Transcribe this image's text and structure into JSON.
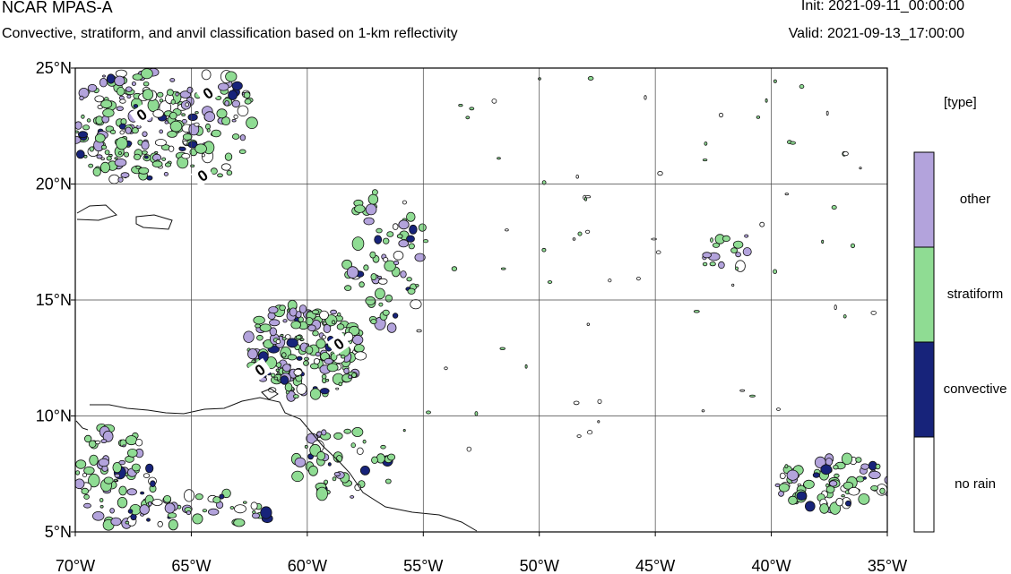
{
  "header": {
    "title": "NCAR MPAS-A",
    "subtitle": "Convective, stratiform, and anvil classification based on 1-km reflectivity",
    "init": "Init: 2021-09-11_00:00:00",
    "valid": "Valid: 2021-09-13_17:00:00"
  },
  "map": {
    "lon_range": [
      -70,
      -35
    ],
    "lat_range": [
      5,
      25
    ],
    "lat_ticks": [
      {
        "value": 25,
        "label": "25°N"
      },
      {
        "value": 20,
        "label": "20°N"
      },
      {
        "value": 15,
        "label": "15°N"
      },
      {
        "value": 10,
        "label": "10°N"
      },
      {
        "value": 5,
        "label": "5°N"
      }
    ],
    "lon_ticks": [
      {
        "value": -70,
        "label": "70°W"
      },
      {
        "value": -65,
        "label": "65°W"
      },
      {
        "value": -60,
        "label": "60°W"
      },
      {
        "value": -55,
        "label": "55°W"
      },
      {
        "value": -50,
        "label": "50°W"
      },
      {
        "value": -45,
        "label": "45°W"
      },
      {
        "value": -40,
        "label": "40°W"
      },
      {
        "value": -35,
        "label": "35°W"
      }
    ],
    "contour_labels": [
      "0",
      "0",
      "0",
      "0",
      "0"
    ]
  },
  "legend": {
    "title": "[type]",
    "items": [
      {
        "label": "other",
        "color": "#b3a3dc"
      },
      {
        "label": "stratiform",
        "color": "#8fdc93"
      },
      {
        "label": "convective",
        "color": "#17237a"
      },
      {
        "label": "no rain",
        "color": "#ffffff"
      }
    ]
  }
}
